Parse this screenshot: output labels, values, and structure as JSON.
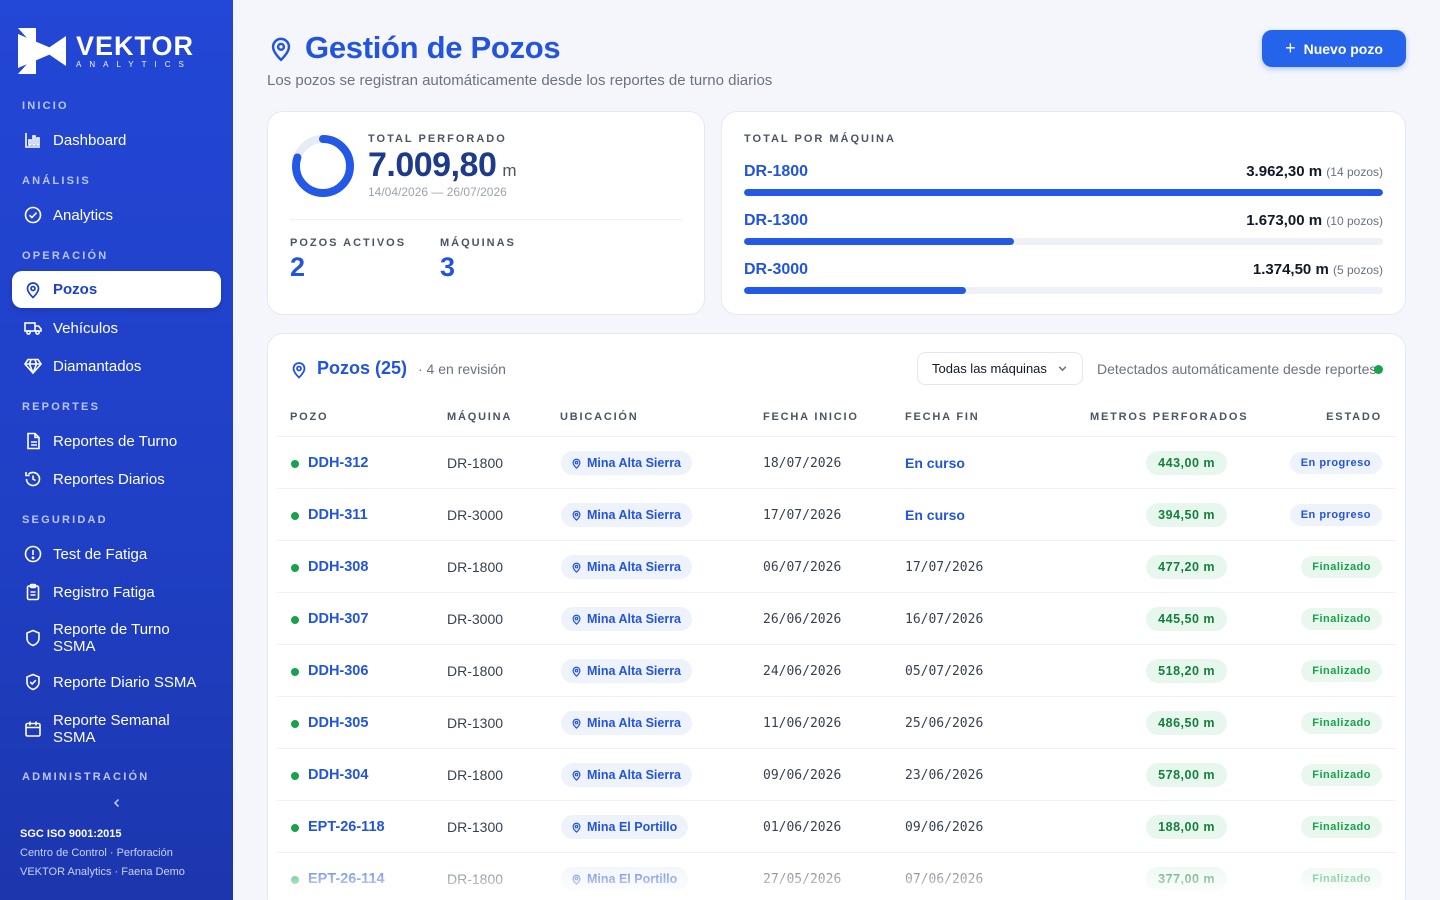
{
  "brand": {
    "name": "VEKTOR",
    "sub": "ANALYTICS"
  },
  "sidebar": {
    "sections": {
      "inicio": "INICIO",
      "analisis": "ANÁLISIS",
      "operacion": "OPERACIÓN",
      "reportes": "REPORTES",
      "seguridad": "SEGURIDAD",
      "administracion": "ADMINISTRACIÓN"
    },
    "items": {
      "dashboard": "Dashboard",
      "analytics": "Analytics",
      "pozos": "Pozos",
      "vehiculos": "Vehículos",
      "diamantados": "Diamantados",
      "reportes_turno": "Reportes de Turno",
      "reportes_diarios": "Reportes Diarios",
      "test_fatiga": "Test de Fatiga",
      "registro_fatiga": "Registro Fatiga",
      "reporte_turno_ssma_1": "Reporte de Turno",
      "reporte_turno_ssma_2": "SSMA",
      "reporte_diario_ssma": "Reporte Diario SSMA",
      "reporte_semanal_ssma_1": "Reporte Semanal",
      "reporte_semanal_ssma_2": "SSMA"
    },
    "footer": {
      "cert": "SGC ISO 9001:2015",
      "line1": "Centro de Control · Perforación",
      "line2": "VEKTOR Analytics · Faena Demo"
    }
  },
  "header": {
    "title": "Gestión de Pozos",
    "subtitle": "Los pozos se registran automáticamente desde los reportes de turno diarios",
    "new_button": "Nuevo pozo"
  },
  "summary": {
    "total_label": "TOTAL PERFORADO",
    "total_value": "7.009,80",
    "total_unit": "m",
    "range": "14/04/2026 — 26/07/2026",
    "active_label": "POZOS ACTIVOS",
    "active_value": "2",
    "machines_label": "MÁQUINAS",
    "machines_value": "3",
    "ring_fill": 0.8
  },
  "by_machine": {
    "label": "TOTAL POR MÁQUINA",
    "rows": [
      {
        "name": "DR-1800",
        "value": "3.962,30 m",
        "count": "(14 pozos)",
        "fill": 1.0
      },
      {
        "name": "DR-1300",
        "value": "1.673,00 m",
        "count": "(10 pozos)",
        "fill": 0.422
      },
      {
        "name": "DR-3000",
        "value": "1.374,50 m",
        "count": "(5 pozos)",
        "fill": 0.347
      }
    ]
  },
  "table": {
    "title": "Pozos (25)",
    "note": "· 4 en revisión",
    "filter": "Todas las máquinas",
    "detect": "Detectados automáticamente desde reportes",
    "columns": [
      "POZO",
      "MÁQUINA",
      "UBICACIÓN",
      "FECHA INICIO",
      "FECHA FIN",
      "METROS PERFORADOS",
      "ESTADO"
    ],
    "rows": [
      {
        "pozo": "DDH-312",
        "maquina": "DR-1800",
        "ubicacion": "Mina Alta Sierra",
        "inicio": "18/07/2026",
        "fin": "En curso",
        "metros": "443,00 m",
        "estado": "En progreso"
      },
      {
        "pozo": "DDH-311",
        "maquina": "DR-3000",
        "ubicacion": "Mina Alta Sierra",
        "inicio": "17/07/2026",
        "fin": "En curso",
        "metros": "394,50 m",
        "estado": "En progreso"
      },
      {
        "pozo": "DDH-308",
        "maquina": "DR-1800",
        "ubicacion": "Mina Alta Sierra",
        "inicio": "06/07/2026",
        "fin": "17/07/2026",
        "metros": "477,20 m",
        "estado": "Finalizado"
      },
      {
        "pozo": "DDH-307",
        "maquina": "DR-3000",
        "ubicacion": "Mina Alta Sierra",
        "inicio": "26/06/2026",
        "fin": "16/07/2026",
        "metros": "445,50 m",
        "estado": "Finalizado"
      },
      {
        "pozo": "DDH-306",
        "maquina": "DR-1800",
        "ubicacion": "Mina Alta Sierra",
        "inicio": "24/06/2026",
        "fin": "05/07/2026",
        "metros": "518,20 m",
        "estado": "Finalizado"
      },
      {
        "pozo": "DDH-305",
        "maquina": "DR-1300",
        "ubicacion": "Mina Alta Sierra",
        "inicio": "11/06/2026",
        "fin": "25/06/2026",
        "metros": "486,50 m",
        "estado": "Finalizado"
      },
      {
        "pozo": "DDH-304",
        "maquina": "DR-1800",
        "ubicacion": "Mina Alta Sierra",
        "inicio": "09/06/2026",
        "fin": "23/06/2026",
        "metros": "578,00 m",
        "estado": "Finalizado"
      },
      {
        "pozo": "EPT-26-118",
        "maquina": "DR-1300",
        "ubicacion": "Mina El Portillo",
        "inicio": "01/06/2026",
        "fin": "09/06/2026",
        "metros": "188,00 m",
        "estado": "Finalizado"
      },
      {
        "pozo": "EPT-26-114",
        "maquina": "DR-1800",
        "ubicacion": "Mina El Portillo",
        "inicio": "27/05/2026",
        "fin": "07/06/2026",
        "metros": "377,00 m",
        "estado": "Finalizado"
      }
    ]
  },
  "colors": {
    "primary": "#2254e0",
    "sidebar": "#2347d6",
    "success": "#16a34a"
  }
}
